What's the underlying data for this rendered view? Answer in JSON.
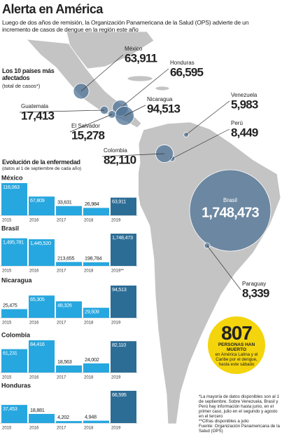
{
  "title": "Alerta en América",
  "subtitle": "Luego de dos años de remisión, la Organización Panamericana de la Salud (OPS) advierte de un incremento de casos de dengue en la región este año",
  "evolution": {
    "title": "Evolución de la enfermedad",
    "subtitle": "(datos al 1 de septiembre de cada año)"
  },
  "deaths": {
    "number": 807,
    "headline": "PERSONAS HAN MUERTO",
    "text": "en América Latina y el Caribe por el dengue, hasta este sábado"
  },
  "notes": [
    "*La mayoría de datos disponibles son al 1 de septiembre. Sobre Venezuela, Brasil y Perú hay información hasta junio, en el primer caso, julio en el segundo y agosto en el tercero",
    "**Cifras disponibles a julio",
    "Fuente: Organización Panamericana de la Salud (OPS)"
  ],
  "chart_data": [
    {
      "type": "bubble-map",
      "title": "Los 10 países más afectados",
      "subtitle": "(total de casos*)",
      "categories": [
        "México",
        "Honduras",
        "Guatemala",
        "Nicaragua",
        "El Salvador",
        "Venezuela",
        "Perú",
        "Colombia",
        "Brasil",
        "Paraguay"
      ],
      "values": [
        63911,
        66595,
        17413,
        94513,
        15278,
        5983,
        8449,
        82110,
        1748473,
        8339
      ],
      "value_labels": [
        "63,911",
        "66,595",
        "17,413",
        "94,513",
        "15,278",
        "5,983",
        "8,449",
        "82,110",
        "1,748,473",
        "8,339"
      ],
      "color": "#4f7395"
    },
    {
      "type": "bar",
      "title": "México",
      "categories": [
        "2015",
        "2016",
        "2017",
        "2018",
        "2019"
      ],
      "values": [
        116063,
        67809,
        33631,
        26984,
        63911
      ],
      "value_labels": [
        "116,063",
        "67,809",
        "33,631",
        "26,984",
        "63,911"
      ],
      "colors": [
        "#27a7df",
        "#27a7df",
        "#27a7df",
        "#27a7df",
        "#2c6d96"
      ]
    },
    {
      "type": "bar",
      "title": "Brasil",
      "categories": [
        "2015",
        "2016",
        "2017",
        "2018",
        "2019**"
      ],
      "values": [
        1495781,
        1445520,
        213655,
        198784,
        1748473
      ],
      "value_labels": [
        "1,495,781",
        "1,445,520",
        "213,655",
        "198,784",
        "1,748,473"
      ],
      "colors": [
        "#27a7df",
        "#27a7df",
        "#27a7df",
        "#27a7df",
        "#2c6d96"
      ]
    },
    {
      "type": "bar",
      "title": "Nicaragua",
      "categories": [
        "2015",
        "2016",
        "2017",
        "2018",
        "2019"
      ],
      "values": [
        25475,
        65305,
        48326,
        29509,
        94513
      ],
      "value_labels": [
        "25,475",
        "65,305",
        "48,326",
        "29,509",
        "94,513"
      ],
      "colors": [
        "#27a7df",
        "#27a7df",
        "#27a7df",
        "#27a7df",
        "#2c6d96"
      ]
    },
    {
      "type": "bar",
      "title": "Colombia",
      "categories": [
        "2015",
        "2016",
        "2017",
        "2018",
        "2019"
      ],
      "values": [
        61231,
        84416,
        18563,
        24002,
        82110
      ],
      "value_labels": [
        "61,231",
        "84,416",
        "18,563",
        "24,002",
        "82,110"
      ],
      "colors": [
        "#27a7df",
        "#27a7df",
        "#27a7df",
        "#27a7df",
        "#2c6d96"
      ]
    },
    {
      "type": "bar",
      "title": "Honduras",
      "categories": [
        "2015",
        "2016",
        "2017",
        "2018",
        "2019"
      ],
      "values": [
        37453,
        18881,
        4202,
        4948,
        66595
      ],
      "value_labels": [
        "37,453",
        "18,881",
        "4,202",
        "4,948",
        "66,595"
      ],
      "colors": [
        "#27a7df",
        "#27a7df",
        "#27a7df",
        "#27a7df",
        "#2c6d96"
      ]
    }
  ]
}
